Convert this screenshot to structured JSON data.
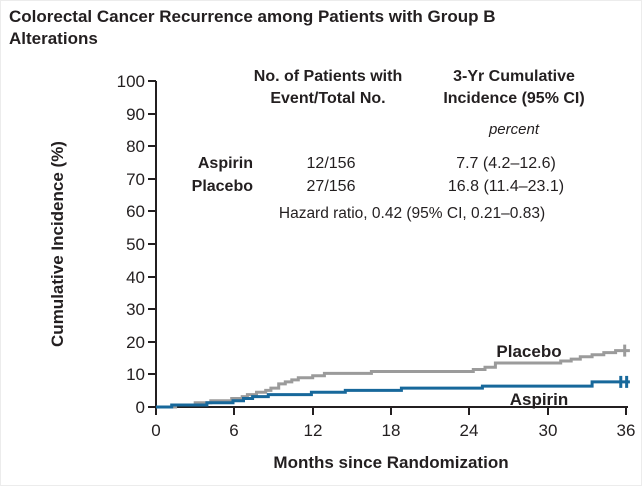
{
  "title": "Colorectal Cancer Recurrence among Patients with Group B Alterations",
  "stats_table": {
    "col1_header_line1": "No. of Patients with",
    "col1_header_line2": "Event/Total No.",
    "col2_header_line1": "3-Yr Cumulative",
    "col2_header_line2": "Incidence (95% CI)",
    "unit_note": "percent",
    "rows": [
      {
        "group": "Aspirin",
        "events": "12/156",
        "incidence": "7.7 (4.2–12.6)"
      },
      {
        "group": "Placebo",
        "events": "27/156",
        "incidence": "16.8 (11.4–23.1)"
      }
    ],
    "hazard_ratio_note": "Hazard ratio, 0.42 (95% CI, 0.21–0.83)"
  },
  "chart_data": {
    "type": "line",
    "subtype": "cumulative-incidence-step-curves",
    "title": "Colorectal Cancer Recurrence among Patients with Group B Alterations",
    "xlabel": "Months since Randomization",
    "ylabel": "Cumulative Incidence (%)",
    "xlim": [
      0,
      36
    ],
    "ylim": [
      0,
      100
    ],
    "xticks": [
      0,
      6,
      12,
      18,
      24,
      30,
      36
    ],
    "yticks": [
      0,
      10,
      20,
      30,
      40,
      50,
      60,
      70,
      80,
      90,
      100
    ],
    "grid": false,
    "legend_position": "inline-curve-labels",
    "series": [
      {
        "name": "Aspirin",
        "color": "#17689b",
        "three_yr_cumulative_incidence_pct": 7.7,
        "ci_95": [
          4.2,
          12.6
        ],
        "events": 12,
        "total": 156,
        "steps": [
          [
            0,
            0
          ],
          [
            1.2,
            0.6
          ],
          [
            3.9,
            1.3
          ],
          [
            5.9,
            1.9
          ],
          [
            6.7,
            2.6
          ],
          [
            7.4,
            3.2
          ],
          [
            8.6,
            3.8
          ],
          [
            11.9,
            4.5
          ],
          [
            14.5,
            5.1
          ],
          [
            18.8,
            5.8
          ],
          [
            25.0,
            6.4
          ],
          [
            33.4,
            7.7
          ],
          [
            36.3,
            7.7
          ]
        ],
        "censor_marks": [
          [
            35.6,
            7.7
          ],
          [
            36.05,
            7.7
          ]
        ]
      },
      {
        "name": "Placebo",
        "color": "#9b9b9b",
        "three_yr_cumulative_incidence_pct": 16.8,
        "ci_95": [
          11.4,
          23.1
        ],
        "events": 27,
        "total": 156,
        "steps": [
          [
            0,
            0
          ],
          [
            1.5,
            0.6
          ],
          [
            3.0,
            1.3
          ],
          [
            4.2,
            1.9
          ],
          [
            5.8,
            2.6
          ],
          [
            6.6,
            3.2
          ],
          [
            7.0,
            3.8
          ],
          [
            7.7,
            4.5
          ],
          [
            8.4,
            5.1
          ],
          [
            8.8,
            5.8
          ],
          [
            9.4,
            7.1
          ],
          [
            9.9,
            7.7
          ],
          [
            10.4,
            8.3
          ],
          [
            10.9,
            9.0
          ],
          [
            12.0,
            9.6
          ],
          [
            12.9,
            10.3
          ],
          [
            16.5,
            10.9
          ],
          [
            24.3,
            11.5
          ],
          [
            25.2,
            12.2
          ],
          [
            26.0,
            13.5
          ],
          [
            31.0,
            14.1
          ],
          [
            31.8,
            14.7
          ],
          [
            32.5,
            15.4
          ],
          [
            33.4,
            16.0
          ],
          [
            34.3,
            16.7
          ],
          [
            35.2,
            17.3
          ],
          [
            36.3,
            17.3
          ]
        ],
        "censor_marks": [
          [
            35.9,
            17.3
          ]
        ]
      }
    ],
    "hazard_ratio": {
      "value": 0.42,
      "ci_95": [
        0.21,
        0.83
      ]
    }
  },
  "colors": {
    "text": "#231f20",
    "axis": "#231f20",
    "aspirin": "#17689b",
    "placebo": "#9b9b9b"
  }
}
